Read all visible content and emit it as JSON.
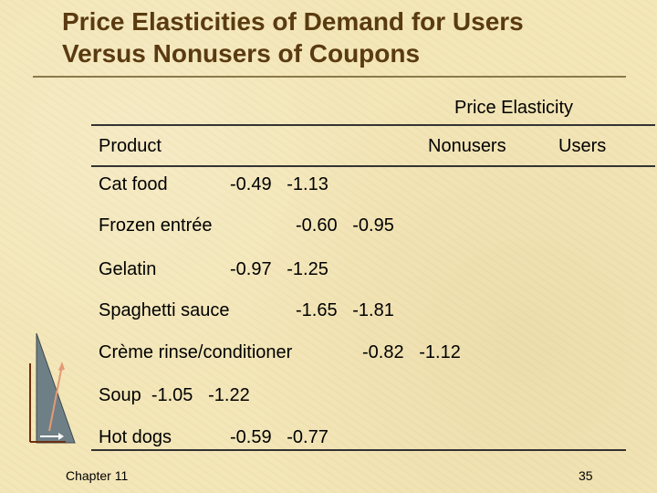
{
  "title": {
    "line1": "Price Elasticities of Demand for Users",
    "line2": "Versus Nonusers of Coupons"
  },
  "table": {
    "group_header": "Price Elasticity",
    "col_product": "Product",
    "col_nonusers": "Nonusers",
    "col_users": "Users",
    "rows": [
      {
        "product": "Cat food",
        "nonusers": "-0.49",
        "users": "-1.13"
      },
      {
        "product": "Frozen entrée",
        "nonusers": "-0.60",
        "users": "-0.95"
      },
      {
        "product": "Gelatin",
        "nonusers": "-0.97",
        "users": "-1.25"
      },
      {
        "product": "Spaghetti sauce",
        "nonusers": "-1.65",
        "users": "-1.81"
      },
      {
        "product": "Crème rinse/conditioner",
        "nonusers": "-0.82",
        "users": "-1.12"
      },
      {
        "product": "Soup",
        "nonusers": "-1.05",
        "users": "-1.22"
      },
      {
        "product": "Hot dogs",
        "nonusers": "-0.59",
        "users": "-0.77"
      }
    ]
  },
  "footer": {
    "chapter": "Chapter 11",
    "page": "35"
  }
}
